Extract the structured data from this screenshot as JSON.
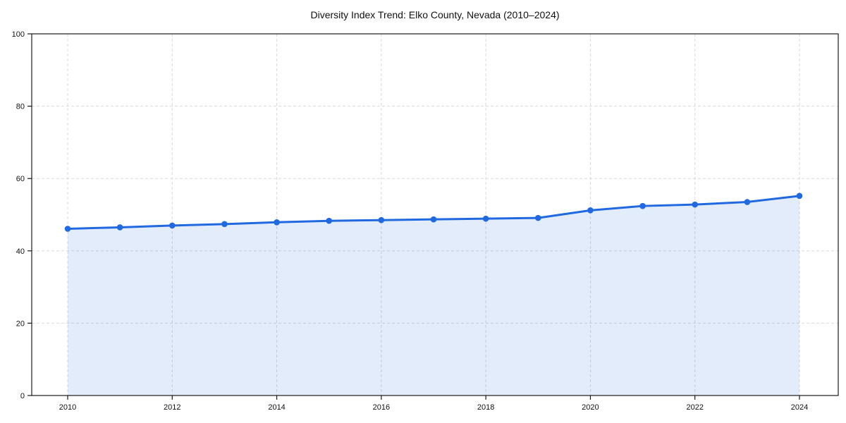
{
  "page": {
    "background": "#ffffff"
  },
  "chart": {
    "title": "Diversity Index Trend: Elko County, Nevada (2010–2024)"
  },
  "chart_data": {
    "type": "area",
    "title": "Diversity Index Trend: Elko County, Nevada (2010–2024)",
    "x": [
      2010,
      2011,
      2012,
      2013,
      2014,
      2015,
      2016,
      2017,
      2018,
      2019,
      2020,
      2021,
      2022,
      2023,
      2024
    ],
    "series": [
      {
        "name": "Diversity Index",
        "values": [
          46.1,
          46.5,
          47.0,
          47.4,
          47.9,
          48.3,
          48.5,
          48.7,
          48.9,
          49.1,
          51.2,
          52.4,
          52.8,
          53.5,
          55.2
        ]
      }
    ],
    "xlabel": "",
    "ylabel": "",
    "ylim": [
      0,
      100
    ],
    "yticks": [
      0,
      20,
      40,
      60,
      80,
      100
    ],
    "xticks": [
      2010,
      2012,
      2014,
      2016,
      2018,
      2020,
      2022,
      2024
    ],
    "grid": "dashed",
    "legend": "none",
    "line_color": "#2169e0",
    "fill_color": "rgba(33, 105, 224, 0.13)",
    "grid_color": "#d9d9d9",
    "axis_color": "#1a1a1a",
    "text_color": "#111111",
    "marker": "circle"
  }
}
